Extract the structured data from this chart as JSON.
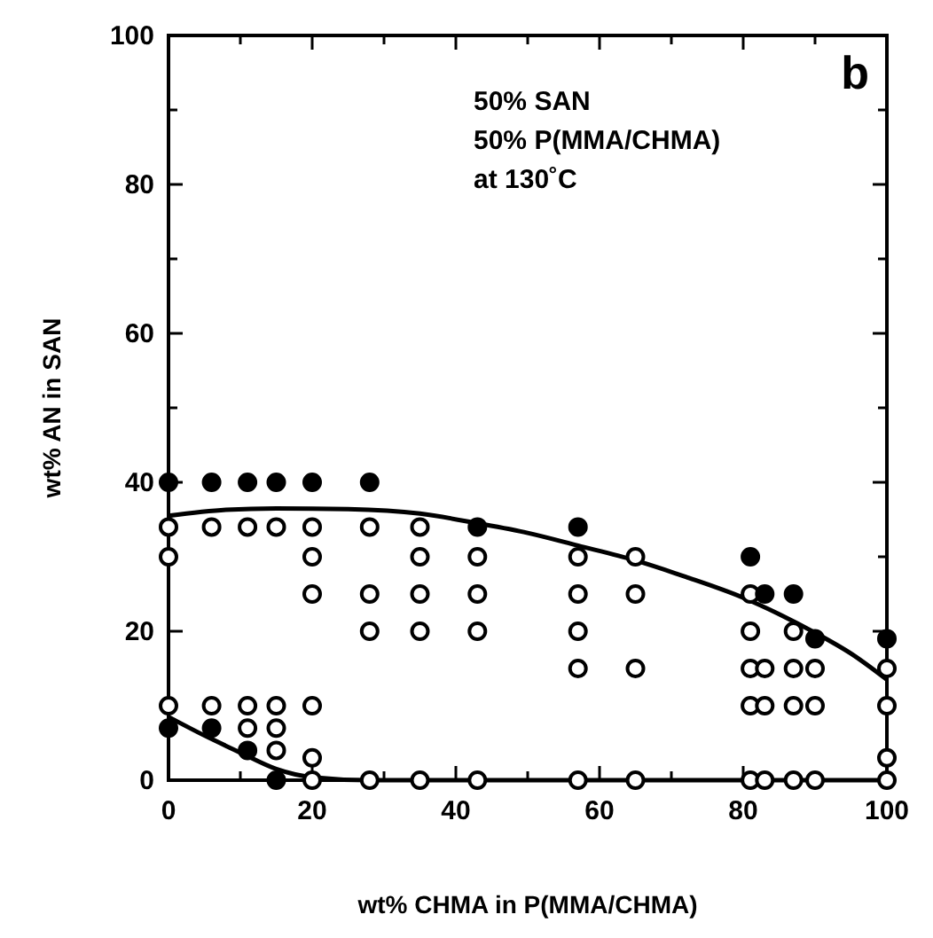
{
  "chart_data": {
    "type": "scatter",
    "xlabel": "wt% CHMA in P(MMA/CHMA)",
    "ylabel": "wt% AN in SAN",
    "annotations": [
      "b",
      "50% SAN",
      "50% P(MMA/CHMA)",
      "at 130˚C"
    ],
    "xlim": [
      0,
      100
    ],
    "ylim": [
      0,
      100
    ],
    "xticks": [
      0,
      {
        "value": 10,
        "label": null
      },
      20,
      {
        "value": 30,
        "label": null
      },
      40,
      {
        "value": 50,
        "label": null
      },
      60,
      {
        "value": 70,
        "label": null
      },
      80,
      {
        "value": 90,
        "label": null
      },
      100
    ],
    "yticks": [
      0,
      {
        "value": 10,
        "label": null
      },
      20,
      {
        "value": 30,
        "label": null
      },
      40,
      {
        "value": 50,
        "label": null
      },
      60,
      {
        "value": 70,
        "label": null
      },
      80,
      {
        "value": 90,
        "label": null
      },
      100
    ],
    "grid": false,
    "marker": "circle",
    "series": [
      {
        "type": "line",
        "color": "#000000",
        "marker": "none",
        "x": [
          0,
          8,
          15,
          25,
          35,
          43,
          50,
          57,
          65,
          72,
          80,
          85,
          90,
          95,
          100
        ],
        "values": [
          35.5,
          36.3,
          36.5,
          36.4,
          35.8,
          34.5,
          33.2,
          31.5,
          29.5,
          27.3,
          24.5,
          22.3,
          19.8,
          17,
          13.5
        ]
      },
      {
        "type": "line",
        "color": "#000000",
        "marker": "none",
        "x": [
          0,
          5,
          10,
          15,
          20,
          28,
          100
        ],
        "values": [
          8.5,
          6,
          3.7,
          1.5,
          0.4,
          0,
          0
        ]
      },
      {
        "color": "#ffffff",
        "x": [
          0,
          0,
          0,
          6,
          6,
          11,
          11,
          11,
          15,
          15,
          15,
          15,
          20,
          20,
          20,
          20,
          20,
          20,
          28,
          28,
          28,
          28,
          35,
          35,
          35,
          35,
          35,
          43,
          43,
          43,
          43,
          57,
          57,
          57,
          57,
          57,
          65,
          65,
          65,
          65,
          81,
          81,
          81,
          81,
          81,
          83,
          83,
          83,
          87,
          87,
          87,
          87,
          90,
          90,
          90,
          100,
          100,
          100,
          100
        ],
        "values": [
          34,
          30,
          10,
          34,
          10,
          34,
          10,
          7,
          34,
          10,
          7,
          4,
          34,
          30,
          25,
          10,
          3,
          0,
          34,
          25,
          20,
          0,
          34,
          30,
          25,
          20,
          0,
          30,
          25,
          20,
          0,
          30,
          25,
          20,
          15,
          0,
          30,
          25,
          15,
          0,
          25,
          20,
          15,
          10,
          0,
          15,
          10,
          0,
          20,
          15,
          10,
          0,
          15,
          10,
          0,
          15,
          10,
          3,
          0
        ]
      },
      {
        "color": "#000000",
        "x": [
          0,
          6,
          11,
          15,
          20,
          28,
          43,
          57,
          81,
          83,
          87,
          90,
          100,
          0,
          6,
          11,
          15
        ],
        "values": [
          40,
          40,
          40,
          40,
          40,
          40,
          34,
          34,
          30,
          25,
          25,
          19,
          19,
          7,
          7,
          4,
          0
        ]
      }
    ]
  }
}
